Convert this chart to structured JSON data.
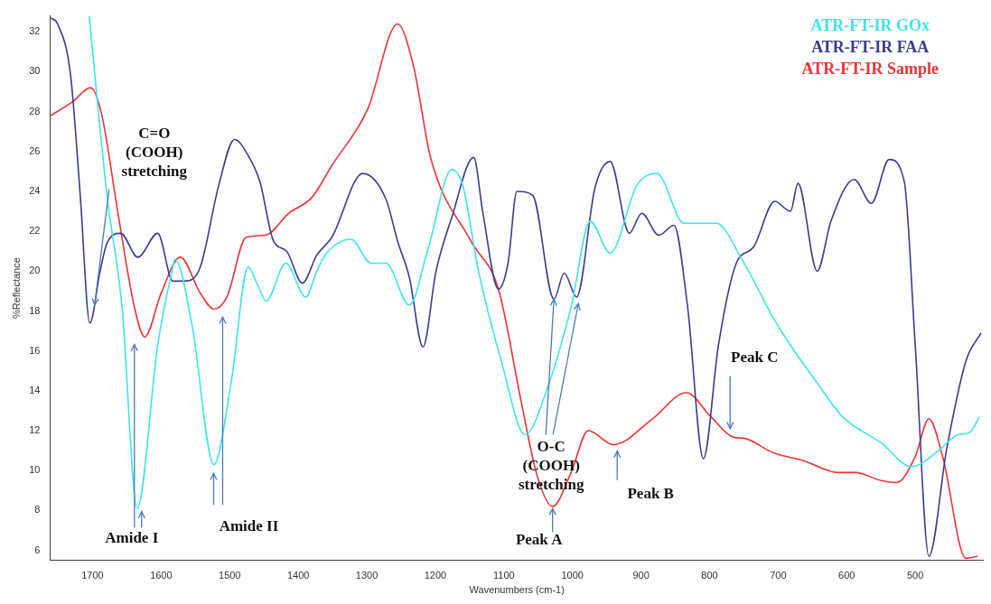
{
  "chart_data": {
    "type": "line",
    "xlabel": "Wavenumbers (cm-1)",
    "ylabel": "%Reflectance",
    "xlim": [
      1762,
      400
    ],
    "ylim": [
      5.5,
      32.8
    ],
    "xticks": [
      1700,
      1600,
      1500,
      1400,
      1300,
      1200,
      1100,
      1000,
      900,
      800,
      700,
      600,
      500
    ],
    "yticks": [
      6,
      8,
      10,
      12,
      14,
      16,
      18,
      20,
      22,
      24,
      26,
      28,
      30,
      32
    ],
    "grid": false,
    "legend": "top right",
    "marker": "none",
    "line_style": "solid",
    "series": [
      {
        "name": "ATR-FT-IR GOx",
        "color": "#40e4ec",
        "x": [
          1705,
          1679,
          1657,
          1635,
          1605,
          1583,
          1580,
          1555,
          1523,
          1498,
          1473,
          1459,
          1447,
          1418,
          1389,
          1373,
          1361,
          1323,
          1294,
          1272,
          1238,
          1210,
          1176,
          1160,
          1137,
          1103,
          1069,
          1036,
          1002,
          974,
          945,
          906,
          877,
          837,
          790,
          753,
          701,
          639,
          606,
          550,
          505,
          466,
          438,
          421,
          406
        ],
        "values": [
          32.8,
          23.8,
          18.2,
          8.1,
          16.3,
          20.2,
          20.6,
          17.3,
          10.3,
          14.4,
          20.2,
          19.3,
          18.5,
          20.4,
          18.7,
          20.0,
          20.8,
          21.6,
          20.4,
          20.4,
          18.3,
          21.2,
          25.1,
          24.3,
          20.0,
          15.4,
          11.8,
          14.2,
          18.2,
          22.5,
          20.9,
          24.3,
          24.9,
          22.4,
          22.4,
          20.6,
          17.3,
          14.2,
          12.7,
          11.4,
          10.2,
          11.0,
          11.8,
          11.9,
          12.7
        ]
      },
      {
        "name": "ATR-FT-IR FAA",
        "color": "#3c3c90",
        "x": [
          1761,
          1751,
          1732,
          1718,
          1704,
          1689,
          1679,
          1659,
          1634,
          1605,
          1583,
          1566,
          1543,
          1516,
          1493,
          1473,
          1456,
          1436,
          1417,
          1394,
          1373,
          1351,
          1306,
          1272,
          1255,
          1238,
          1218,
          1199,
          1176,
          1144,
          1131,
          1108,
          1094,
          1081,
          1058,
          1027,
          1012,
          994,
          967,
          945,
          917,
          899,
          874,
          852,
          832,
          809,
          787,
          761,
          736,
          705,
          682,
          671,
          643,
          623,
          589,
          564,
          538,
          516,
          500,
          480,
          454,
          426,
          404
        ],
        "values": [
          32.7,
          32.4,
          29.8,
          23.8,
          17.4,
          20.0,
          21.4,
          21.9,
          20.7,
          21.9,
          19.5,
          19.5,
          20.2,
          24.3,
          26.6,
          25.8,
          24.5,
          21.5,
          21.0,
          19.4,
          20.8,
          21.7,
          24.9,
          23.6,
          21.5,
          19.7,
          16.2,
          20.0,
          22.7,
          25.7,
          23.0,
          19.1,
          20.4,
          24.0,
          23.8,
          18.6,
          19.9,
          18.7,
          24.2,
          25.5,
          21.9,
          22.9,
          21.8,
          22.3,
          18.2,
          10.6,
          16.3,
          20.4,
          21.2,
          23.5,
          23.0,
          24.4,
          20.0,
          22.5,
          24.6,
          23.4,
          25.6,
          24.5,
          16.3,
          5.7,
          11.1,
          15.5,
          16.9
        ]
      },
      {
        "name": "ATR-FT-IR Sample",
        "color": "#ee3434",
        "x": [
          1761,
          1729,
          1703,
          1687,
          1662,
          1639,
          1624,
          1600,
          1572,
          1543,
          1523,
          1504,
          1476,
          1448,
          1414,
          1380,
          1351,
          1299,
          1255,
          1232,
          1207,
          1148,
          1108,
          1075,
          1052,
          1029,
          1002,
          977,
          940,
          883,
          834,
          798,
          767,
          747,
          708,
          663,
          612,
          587,
          550,
          527,
          500,
          480,
          460,
          426,
          409
        ],
        "values": [
          27.8,
          28.5,
          29.2,
          27.9,
          22.7,
          18.2,
          16.7,
          18.9,
          20.7,
          18.9,
          18.1,
          18.7,
          21.7,
          21.8,
          22.9,
          23.7,
          25.3,
          28.1,
          32.4,
          30.3,
          25.7,
          21.5,
          19.1,
          13.5,
          9.8,
          8.2,
          9.9,
          12.0,
          11.3,
          12.6,
          13.9,
          12.7,
          11.7,
          11.6,
          10.9,
          10.5,
          9.9,
          9.9,
          9.5,
          9.4,
          10.7,
          12.6,
          10.7,
          5.6,
          5.7
        ]
      }
    ],
    "annotations": [
      {
        "text": "C=O\n(COOH)\nstretching",
        "x": 1697,
        "y": 18.3
      },
      "Amide I",
      "Amide II",
      {
        "text": "O-C\n(COOH)\nstretching",
        "x": 1027,
        "y": 18.6
      },
      {
        "text": "Peak A",
        "x": 1029,
        "y": 8.1
      },
      "Peak B",
      {
        "text": "Peak C",
        "x": 770,
        "y": 12.1
      }
    ]
  }
}
